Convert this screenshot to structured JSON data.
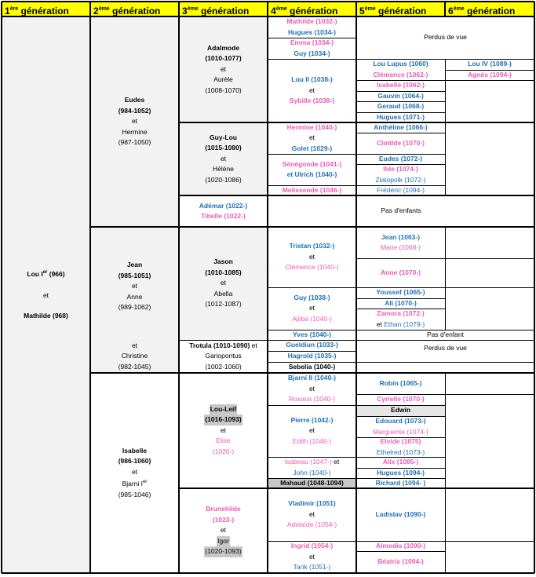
{
  "headers": [
    {
      "num": "1",
      "sup": "ère",
      "word": "génération"
    },
    {
      "num": "2",
      "sup": "ème",
      "word": "génération"
    },
    {
      "num": "3",
      "sup": "ème",
      "word": "génération"
    },
    {
      "num": "4",
      "sup": "ème",
      "word": "génération"
    },
    {
      "num": "5",
      "sup": "ème",
      "word": "génération"
    },
    {
      "num": "6",
      "sup": "ème",
      "word": "génération"
    }
  ],
  "gen1": {
    "line1": "Lou I",
    "sup": "er",
    "line1b": " (966)",
    "et": "et",
    "line2": "Mathilde (968)"
  },
  "gen2": {
    "eudes": {
      "a": "Eudes",
      "b": "(984-1052)",
      "et": "et",
      "c": "Hermine",
      "d": "(987-1050)"
    },
    "jean": {
      "a": "Jean",
      "b": "(985-1051)",
      "et": "et",
      "c": "Anne",
      "d": "(989-1062)"
    },
    "christine": {
      "et": "et",
      "c": "Christine",
      "d": "(982-1045)"
    },
    "isabelle": {
      "a": "Isabelle",
      "b": "(986-1060)",
      "et": "et",
      "c": "Bjarni I",
      "csup": "er",
      "d": "(985-1046)"
    }
  },
  "gen3": {
    "adalmode": {
      "a": "Adalmode",
      "b": "(1010-1077)",
      "et": "et",
      "c": "Aurèle",
      "d": "(1008-1070)"
    },
    "guylou": {
      "a": "Guy-Lou",
      "b": "(1015-1080)",
      "et": "et",
      "c": "Hélène",
      "d": "(1020-1086)"
    },
    "ademar": {
      "a": "Adémar (1022-)",
      "b": "Tibelle (1022-)"
    },
    "jason": {
      "a": "Jason",
      "b": "(1010-1085)",
      "et": "et",
      "c": "Abella",
      "d": "(1012-1087)"
    },
    "trotula": {
      "a": "Trotula (1010-1090)",
      "et": " et",
      "c": "Gariopontus",
      "d": "(1002-1060)"
    },
    "louleif": {
      "a": "Lou-Leif",
      "b": "(1016-1093)",
      "et": "et",
      "c": "Elise",
      "d": "(1020-)"
    },
    "brunehilde": {
      "a": "Brunehilde",
      "b": "(1023-)",
      "et": "et",
      "c": "Igor",
      "d": "(1020-1093)"
    }
  },
  "gen4": {
    "mathilde": "Mathilde (1032-)",
    "hugues": "Hugues (1034-)",
    "emma": "Emma (1034-)",
    "guy": "Guy (1034-)",
    "lou2": "Lou II (1038-)",
    "lou2_et": "et",
    "sybille": "Sybille (1038-)",
    "hermine": "Hermine (1040-)",
    "hermine_et": "et",
    "golet": "Golet (1029-)",
    "senegonde": "Sénégonde (1041-)",
    "ulrich": "et Ulrich (1040-)",
    "melissende": "Melissende (1046-)",
    "tristan": "Tristan (1032-)",
    "tristan_et": "et",
    "clemence": "Clémence (1040-)",
    "guy2": "Guy (1038-)",
    "guy2_et": "et",
    "ajiiba": "Ajiiba (1040-)",
    "yves": "Yves (1040-)",
    "gueldiun": "Gueldiun (1033-)",
    "hagrold": "Hagrold (1035-)",
    "sebelia": "Sebelia (1040-)",
    "bjarni2": "Bjarni II (1040-)",
    "bjarni2_et": "et",
    "roxana": "Roxana (1040-)",
    "pierre": "Pierre (1042-)",
    "pierre_et": "et",
    "edith": "Edith (1046-)",
    "isabeau": "Isabeau (1047-)",
    "isabeau_et": " et",
    "john": "John (1040-)",
    "mahaud": "Mahaud (1048-1094)",
    "vladimir": "Vladimir (1051)",
    "vladimir_et": "et",
    "adelaide": "Adelaïde (1054-)",
    "ingrid": "Ingrid (1054-)",
    "ingrid_et": "et",
    "tarik": "Tarik (1051-)"
  },
  "gen5": {
    "perdus1": "Perdus de vue",
    "loulupus": "Lou Lupus (1060)",
    "clemence": "Clémence (1062-)",
    "isabelle": "Isabelle (1062-)",
    "gauvin": "Gauvin (1064-)",
    "geraud": "Geraud (1068-)",
    "hugues": "Hugues (1071-)",
    "anthelme": "Anthèlme (1066-)",
    "clotilde": "Clotilde (1070-)",
    "eudes": "Eudes (1072-)",
    "ilde": "Ilde (1074-)",
    "zlatopolk": "Zlatopolk (1072-)",
    "frederic": "Frédéric (1094-)",
    "pasenfants": "Pas d'enfants",
    "jean": "Jean (1063-)",
    "marie": "Marie (1068-)",
    "anne": "Anne (1070-)",
    "youssef": "Youssef (1065-)",
    "ali": "Ali (1070-)",
    "zamora": "Zamora (1072-)",
    "ethan_et": "et ",
    "ethan": "Ethan (1079-)",
    "pasenfant": "Pas d'enfant",
    "perdus2": "Perdus de vue",
    "robin": "Robin (1065-)",
    "cyrielle": "Cyrielle (1070-)",
    "edwin": "Edwin",
    "edouard": "Edouard (1073-)",
    "marguerite": "Marguerite (1074-)",
    "elvide": "Elvide (1075)",
    "ethelred": "Ethelred (1073-)",
    "alix": "Alix (1085-)",
    "hugues2": "Hugues (1094-)",
    "richard": "Richard (1094- )",
    "ladislav": "Ladislav (1090-)",
    "almodis": "Almodis (1090-)",
    "beatrix": "Béatrix (1094-)"
  },
  "gen6": {
    "lou4": "Lou IV (1089-)",
    "agnes": "Agnès (1094-)"
  }
}
